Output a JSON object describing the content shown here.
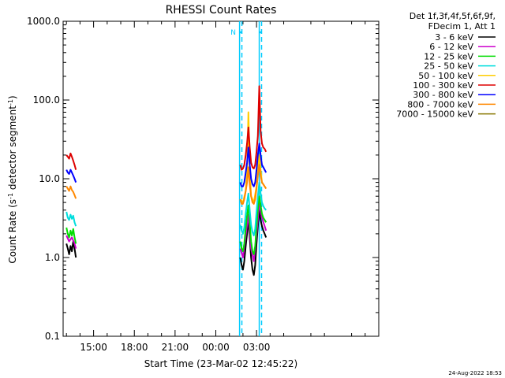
{
  "chart_data": {
    "type": "line",
    "title": "RHESSI Count Rates",
    "xlabel": "Start Time (23-Mar-02 12:45:22)",
    "ylabel_prefix": "Count Rate (s",
    "ylabel_sup1": "-1",
    "ylabel_mid": " detector segment",
    "ylabel_sup2": "-1",
    "ylabel_suffix": ")",
    "y_scale": "log",
    "ylim": [
      0.1,
      1000
    ],
    "xlim_hours": [
      12.756,
      36.0
    ],
    "x_ticks": [
      {
        "hour": 15,
        "label": "15:00"
      },
      {
        "hour": 18,
        "label": "18:00"
      },
      {
        "hour": 21,
        "label": "21:00"
      },
      {
        "hour": 24,
        "label": "00:00"
      },
      {
        "hour": 27,
        "label": "03:00"
      }
    ],
    "y_ticks": [
      {
        "value": 1000,
        "label": "1000.0"
      },
      {
        "value": 100,
        "label": "100.0"
      },
      {
        "value": 10,
        "label": "10.0"
      },
      {
        "value": 1,
        "label": "1.0"
      },
      {
        "value": 0.1,
        "label": "0.1"
      }
    ],
    "legend_placement": "top-right",
    "legend_header": [
      "Det 1f,3f,4f,5f,6f,9f,",
      "FDecim 1, Att 1"
    ],
    "series": [
      {
        "name": "3 - 6 keV",
        "color": "#000000",
        "segments": [
          {
            "x": [
              13.0,
              13.1,
              13.2,
              13.3,
              13.4,
              13.5,
              13.6,
              13.7
            ],
            "y": [
              1.5,
              1.3,
              1.1,
              1.4,
              1.2,
              1.6,
              1.3,
              1.0
            ]
          },
          {
            "x": [
              25.8,
              25.9,
              26.0,
              26.1,
              26.2,
              26.3,
              26.4,
              26.5,
              26.6,
              26.7,
              26.8,
              26.9,
              27.0,
              27.1,
              27.2,
              27.3,
              27.4,
              27.5,
              27.6,
              27.7
            ],
            "y": [
              1.0,
              0.8,
              0.7,
              0.9,
              1.4,
              2.0,
              3.0,
              1.8,
              1.0,
              0.7,
              0.6,
              0.8,
              1.5,
              2.5,
              4.0,
              3.0,
              2.5,
              2.2,
              2.0,
              1.8
            ]
          }
        ]
      },
      {
        "name": "6 - 12 keV",
        "color": "#cc00cc",
        "segments": [
          {
            "x": [
              13.0,
              13.2,
              13.4,
              13.6,
              13.7
            ],
            "y": [
              1.9,
              1.6,
              1.8,
              1.5,
              1.3
            ]
          },
          {
            "x": [
              25.8,
              26.0,
              26.2,
              26.4,
              26.6,
              26.8,
              27.0,
              27.2,
              27.4,
              27.6,
              27.7
            ],
            "y": [
              1.3,
              1.0,
              1.9,
              3.5,
              1.3,
              0.9,
              2.0,
              4.8,
              3.2,
              2.5,
              2.2
            ]
          }
        ]
      },
      {
        "name": "12 - 25 keV",
        "color": "#00dd00",
        "segments": [
          {
            "x": [
              13.0,
              13.1,
              13.2,
              13.3,
              13.4,
              13.5,
              13.6,
              13.7
            ],
            "y": [
              2.4,
              2.0,
              1.8,
              2.2,
              1.9,
              2.3,
              1.8,
              1.5
            ]
          },
          {
            "x": [
              25.8,
              25.9,
              26.0,
              26.1,
              26.2,
              26.3,
              26.4,
              26.5,
              26.6,
              26.7,
              26.8,
              26.9,
              27.0,
              27.1,
              27.2,
              27.3,
              27.4,
              27.5,
              27.6,
              27.7
            ],
            "y": [
              1.6,
              1.3,
              1.2,
              1.5,
              2.4,
              3.4,
              4.6,
              2.8,
              1.6,
              1.2,
              1.1,
              1.4,
              2.5,
              4.0,
              6.0,
              4.6,
              3.6,
              3.2,
              3.0,
              2.8
            ]
          }
        ]
      },
      {
        "name": "25 - 50 keV",
        "color": "#00dddd",
        "segments": [
          {
            "x": [
              13.0,
              13.1,
              13.2,
              13.3,
              13.4,
              13.5,
              13.6,
              13.7
            ],
            "y": [
              3.8,
              3.2,
              3.0,
              3.5,
              3.1,
              3.4,
              2.8,
              2.5
            ]
          },
          {
            "x": [
              25.8,
              25.9,
              26.0,
              26.1,
              26.2,
              26.3,
              26.4,
              26.5,
              26.6,
              26.7,
              26.8,
              26.9,
              27.0,
              27.1,
              27.2,
              27.3,
              27.4,
              27.5,
              27.6,
              27.7
            ],
            "y": [
              2.6,
              2.2,
              2.0,
              2.4,
              3.6,
              5.0,
              6.5,
              4.0,
              2.6,
              2.1,
              1.9,
              2.3,
              3.8,
              6.0,
              9.0,
              6.5,
              5.0,
              4.5,
              4.2,
              4.0
            ]
          }
        ]
      },
      {
        "name": "50 - 100 keV",
        "color": "#ffcc00",
        "segments": [
          {
            "x": [
              25.8,
              26.0,
              26.2,
              26.3,
              26.4,
              26.5,
              26.6,
              26.8,
              27.0,
              27.1,
              27.2,
              27.3,
              27.4,
              27.6,
              27.7
            ],
            "y": [
              5.5,
              5.0,
              7.0,
              12.0,
              70.0,
              14.0,
              6.0,
              5.0,
              8.0,
              14.0,
              20.0,
              13.0,
              9.0,
              8.0,
              7.5
            ]
          }
        ]
      },
      {
        "name": "100 - 300 keV",
        "color": "#dd0000",
        "segments": [
          {
            "x": [
              13.0,
              13.1,
              13.2,
              13.3,
              13.4,
              13.5,
              13.6,
              13.7
            ],
            "y": [
              20.0,
              19.0,
              18.0,
              21.0,
              19.0,
              17.0,
              15.0,
              13.0
            ]
          },
          {
            "x": [
              25.8,
              25.9,
              26.0,
              26.1,
              26.2,
              26.3,
              26.4,
              26.5,
              26.6,
              26.7,
              26.8,
              26.9,
              27.0,
              27.1,
              27.2,
              27.3,
              27.4,
              27.5,
              27.6,
              27.7
            ],
            "y": [
              15.0,
              13.0,
              13.5,
              15.0,
              20.0,
              28.0,
              45.0,
              25.0,
              16.0,
              14.0,
              13.5,
              15.0,
              22.0,
              35.0,
              150.0,
              40.0,
              28.0,
              25.0,
              24.0,
              22.0
            ]
          }
        ]
      },
      {
        "name": "300 - 800 keV",
        "color": "#0000ff",
        "segments": [
          {
            "x": [
              13.0,
              13.1,
              13.2,
              13.3,
              13.4,
              13.5,
              13.6,
              13.7
            ],
            "y": [
              13.0,
              12.0,
              11.5,
              13.0,
              12.0,
              11.0,
              10.0,
              9.0
            ]
          },
          {
            "x": [
              25.8,
              25.9,
              26.0,
              26.1,
              26.2,
              26.3,
              26.4,
              26.5,
              26.6,
              26.7,
              26.8,
              26.9,
              27.0,
              27.1,
              27.2,
              27.3,
              27.4,
              27.5,
              27.6,
              27.7
            ],
            "y": [
              9.0,
              8.0,
              8.0,
              9.0,
              12.0,
              16.0,
              25.0,
              15.0,
              10.0,
              8.5,
              8.0,
              9.0,
              13.0,
              20.0,
              28.0,
              20.0,
              15.0,
              14.0,
              13.0,
              12.0
            ]
          }
        ]
      },
      {
        "name": "800 - 7000 keV",
        "color": "#ff8800",
        "segments": [
          {
            "x": [
              13.0,
              13.1,
              13.2,
              13.3,
              13.4,
              13.5,
              13.6,
              13.7
            ],
            "y": [
              8.0,
              7.5,
              7.0,
              8.0,
              7.2,
              6.8,
              6.2,
              5.6
            ]
          },
          {
            "x": [
              25.8,
              25.9,
              26.0,
              26.1,
              26.2,
              26.3,
              26.4,
              26.5,
              26.6,
              26.7,
              26.8,
              26.9,
              27.0,
              27.1,
              27.2,
              27.3,
              27.4,
              27.5,
              27.6,
              27.7
            ],
            "y": [
              5.5,
              4.8,
              4.8,
              5.5,
              7.0,
              9.0,
              14.0,
              8.5,
              6.0,
              5.0,
              4.8,
              5.5,
              7.5,
              11.0,
              15.0,
              11.0,
              9.0,
              8.5,
              8.0,
              7.5
            ]
          }
        ]
      },
      {
        "name": "7000 - 15000 keV",
        "color": "#887700",
        "segments": []
      }
    ],
    "time_markers": [
      {
        "hour": 25.75,
        "style": "solid"
      },
      {
        "hour": 25.92,
        "style": "dashed"
      },
      {
        "hour": 27.2,
        "style": "solid"
      },
      {
        "hour": 27.37,
        "style": "dashed"
      }
    ],
    "marker_bars": [
      {
        "label": "N",
        "from_hour": 25.75,
        "to_hour": 25.92
      },
      {
        "label": "",
        "from_hour": 27.2,
        "to_hour": 27.37
      }
    ],
    "marker_color": "#00ccff",
    "footer_date": "24-Aug-2022 18:53"
  }
}
